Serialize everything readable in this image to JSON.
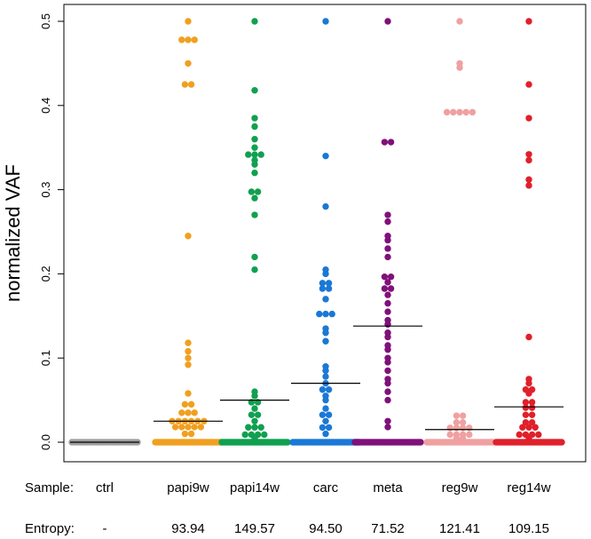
{
  "chart_data": {
    "type": "scatter",
    "subtype": "beeswarm-dot-plot",
    "ylabel": "normalized VAF",
    "ylim": [
      0,
      0.5
    ],
    "yticks": [
      0.0,
      0.1,
      0.2,
      0.3,
      0.4,
      0.5
    ],
    "ytick_labels": [
      "0.0",
      "0.1",
      "0.2",
      "0.3",
      "0.4",
      "0.5"
    ],
    "categories": [
      "ctrl",
      "papi9w",
      "papi14w",
      "carc",
      "meta",
      "reg9w",
      "reg14w"
    ],
    "series": [
      {
        "name": "ctrl",
        "color": "#9e9e9e",
        "median": 0.0,
        "zero_count": 30,
        "values": []
      },
      {
        "name": "papi9w",
        "color": "#f0a020",
        "median": 0.025,
        "zero_count": 40,
        "values": [
          0.5,
          0.478,
          0.478,
          0.478,
          0.45,
          0.425,
          0.425,
          0.245,
          0.118,
          0.108,
          0.1,
          0.092,
          0.058,
          0.045,
          0.045,
          0.035,
          0.035,
          0.035,
          0.025,
          0.025,
          0.025,
          0.025,
          0.025,
          0.025,
          0.018,
          0.018,
          0.018,
          0.018,
          0.018,
          0.01,
          0.01
        ]
      },
      {
        "name": "papi14w",
        "color": "#10a050",
        "median": 0.05,
        "zero_count": 45,
        "values": [
          0.5,
          0.418,
          0.385,
          0.375,
          0.36,
          0.35,
          0.345,
          0.34,
          0.34,
          0.335,
          0.33,
          0.32,
          0.3,
          0.295,
          0.29,
          0.27,
          0.22,
          0.205,
          0.06,
          0.055,
          0.05,
          0.045,
          0.04,
          0.035,
          0.03,
          0.025,
          0.02,
          0.018,
          0.015,
          0.012,
          0.01,
          0.008,
          0.006,
          0.004
        ]
      },
      {
        "name": "carc",
        "color": "#1a78d6",
        "median": 0.07,
        "zero_count": 40,
        "values": [
          0.5,
          0.34,
          0.28,
          0.205,
          0.2,
          0.19,
          0.188,
          0.185,
          0.18,
          0.17,
          0.155,
          0.152,
          0.15,
          0.135,
          0.13,
          0.12,
          0.09,
          0.085,
          0.078,
          0.07,
          0.065,
          0.06,
          0.055,
          0.05,
          0.04,
          0.035,
          0.03,
          0.025,
          0.02,
          0.015,
          0.01
        ]
      },
      {
        "name": "meta",
        "color": "#80107a",
        "median": 0.138,
        "zero_count": 40,
        "values": [
          0.5,
          0.358,
          0.355,
          0.27,
          0.262,
          0.245,
          0.24,
          0.23,
          0.22,
          0.198,
          0.195,
          0.19,
          0.185,
          0.18,
          0.175,
          0.165,
          0.155,
          0.145,
          0.14,
          0.13,
          0.125,
          0.115,
          0.11,
          0.1,
          0.095,
          0.085,
          0.075,
          0.07,
          0.06,
          0.05,
          0.025,
          0.018
        ]
      },
      {
        "name": "reg9w",
        "color": "#f0a0a0",
        "median": 0.015,
        "zero_count": 40,
        "values": [
          0.5,
          0.45,
          0.445,
          0.392,
          0.392,
          0.392,
          0.392,
          0.392,
          0.035,
          0.028,
          0.025,
          0.022,
          0.02,
          0.018,
          0.016,
          0.014,
          0.012,
          0.01,
          0.008,
          0.006,
          0.005,
          0.004
        ]
      },
      {
        "name": "reg14w",
        "color": "#e0202a",
        "median": 0.042,
        "zero_count": 40,
        "values": [
          0.5,
          0.425,
          0.385,
          0.342,
          0.335,
          0.312,
          0.305,
          0.125,
          0.075,
          0.07,
          0.065,
          0.06,
          0.058,
          0.05,
          0.045,
          0.042,
          0.04,
          0.035,
          0.03,
          0.025,
          0.022,
          0.02,
          0.018,
          0.015,
          0.012,
          0.01,
          0.008,
          0.006,
          0.004
        ]
      }
    ]
  },
  "sample_row": {
    "label": "Sample:",
    "values": [
      "ctrl",
      "papi9w",
      "papi14w",
      "carc",
      "meta",
      "reg9w",
      "reg14w"
    ]
  },
  "entropy_row": {
    "label": "Entropy:",
    "values": [
      "-",
      "93.94",
      "149.57",
      "94.50",
      "71.52",
      "121.41",
      "109.15"
    ]
  }
}
